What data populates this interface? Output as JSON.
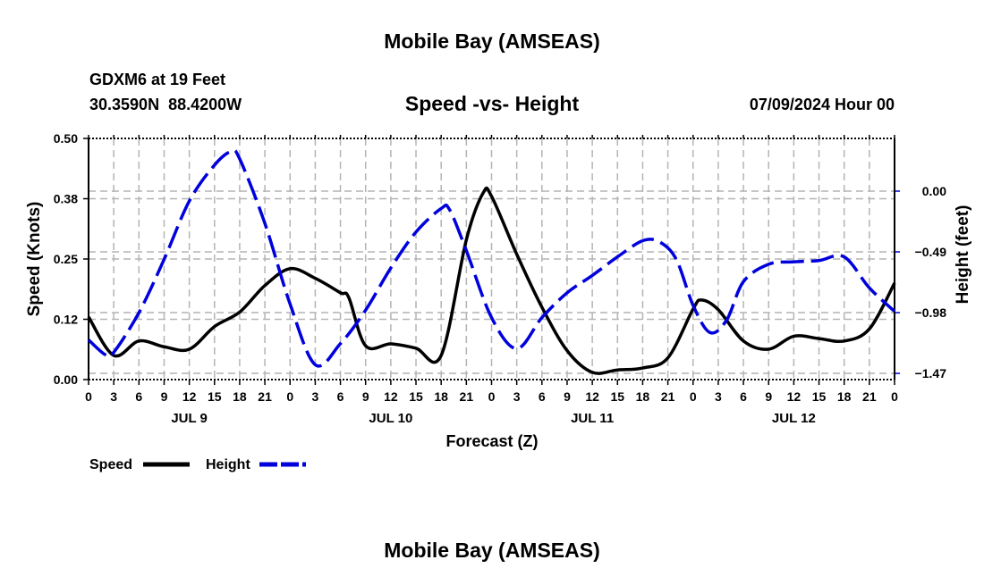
{
  "header": {
    "title": "Mobile Bay (AMSEAS)",
    "station": "GDXM6 at 19 Feet",
    "coords": "30.3590N  88.4200W",
    "subtitle": "Speed -vs- Height",
    "datetime": "07/09/2024 Hour 00"
  },
  "footer": {
    "title": "Mobile Bay (AMSEAS)"
  },
  "colors": {
    "speed": "#000000",
    "height": "#0000dd",
    "grid": "#b4b4b4"
  },
  "chart_data": {
    "type": "line",
    "title": "Speed -vs- Height",
    "xlabel": "Forecast (Z)",
    "ylabel": "Speed (Knots)",
    "y2label": "Height (feet)",
    "xlim": [
      0,
      96
    ],
    "ylim": [
      0,
      0.5
    ],
    "y2lim": [
      -1.52,
      0.425
    ],
    "x_tick_labels": [
      "0",
      "3",
      "6",
      "9",
      "12",
      "15",
      "18",
      "21",
      "0",
      "3",
      "6",
      "9",
      "12",
      "15",
      "18",
      "21",
      "0",
      "3",
      "6",
      "9",
      "12",
      "15",
      "18",
      "21",
      "0",
      "3",
      "6",
      "9",
      "12",
      "15",
      "18",
      "21",
      "0"
    ],
    "day_labels": [
      {
        "hour": 12,
        "label": "JUL 9"
      },
      {
        "hour": 36,
        "label": "JUL 10"
      },
      {
        "hour": 60,
        "label": "JUL 11"
      },
      {
        "hour": 84,
        "label": "JUL 12"
      }
    ],
    "y_ticks": [
      {
        "value": 0,
        "label": "0.00"
      },
      {
        "value": 0.125,
        "label": "0.12"
      },
      {
        "value": 0.25,
        "label": "0.25"
      },
      {
        "value": 0.375,
        "label": "0.38"
      },
      {
        "value": 0.5,
        "label": "0.50"
      }
    ],
    "y2_ticks": [
      {
        "value": 0,
        "label": "0.00"
      },
      {
        "value": -0.49,
        "label": "−0.49"
      },
      {
        "value": -0.98,
        "label": "−0.98"
      },
      {
        "value": -1.47,
        "label": "−1.47"
      }
    ],
    "grid": true,
    "legend": "bottom-left",
    "series": [
      {
        "name": "Speed",
        "axis": "left",
        "style": "solid",
        "x": [
          0,
          3,
          6,
          9,
          12,
          15,
          18,
          21,
          24,
          27,
          30,
          31,
          33,
          36,
          39,
          42,
          45,
          47,
          48,
          51,
          54,
          57,
          60,
          63,
          66,
          69,
          72,
          73,
          75,
          78,
          81,
          84,
          87,
          90,
          93,
          96
        ],
        "values": [
          0.13,
          0.05,
          0.08,
          0.068,
          0.063,
          0.11,
          0.14,
          0.195,
          0.23,
          0.21,
          0.18,
          0.17,
          0.07,
          0.074,
          0.065,
          0.05,
          0.29,
          0.387,
          0.38,
          0.26,
          0.15,
          0.06,
          0.015,
          0.02,
          0.024,
          0.045,
          0.146,
          0.165,
          0.145,
          0.08,
          0.063,
          0.09,
          0.085,
          0.08,
          0.105,
          0.2
        ]
      },
      {
        "name": "Height",
        "axis": "right",
        "style": "dashed",
        "x": [
          0,
          2,
          3,
          6,
          9,
          12,
          15,
          17,
          18,
          21,
          24,
          27,
          30,
          33,
          36,
          39,
          42,
          43,
          45,
          48,
          51,
          54,
          57,
          60,
          63,
          66,
          68,
          70,
          72,
          74,
          76,
          78,
          81,
          84,
          87,
          90,
          93,
          96
        ],
        "values": [
          -1.2,
          -1.32,
          -1.3,
          -0.98,
          -0.55,
          -0.08,
          0.21,
          0.32,
          0.26,
          -0.26,
          -0.91,
          -1.4,
          -1.23,
          -0.96,
          -0.62,
          -0.33,
          -0.14,
          -0.15,
          -0.48,
          -1.02,
          -1.27,
          -1.02,
          -0.82,
          -0.68,
          -0.53,
          -0.4,
          -0.41,
          -0.55,
          -0.92,
          -1.14,
          -1.04,
          -0.73,
          -0.59,
          -0.57,
          -0.56,
          -0.53,
          -0.78,
          -0.97
        ]
      }
    ]
  }
}
